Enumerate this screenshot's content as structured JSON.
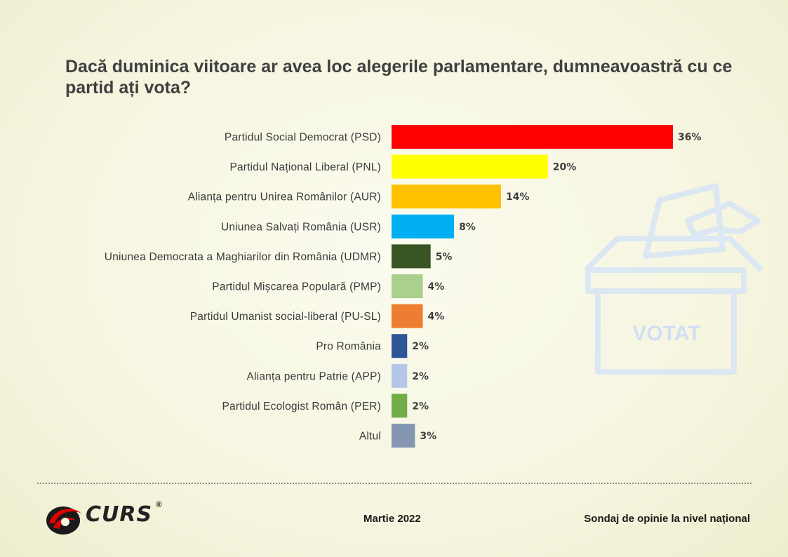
{
  "title": "Dacă duminica viitoare ar avea loc alegerile parlamentare, dumneavoastră cu ce partid ați vota?",
  "chart_data": {
    "type": "bar",
    "orientation": "horizontal",
    "categories": [
      "Partidul Social Democrat (PSD)",
      "Partidul Național Liberal (PNL)",
      "Alianța pentru Unirea Românilor (AUR)",
      "Uniunea Salvați România (USR)",
      "Uniunea Democrata a Maghiarilor din România (UDMR)",
      "Partidul Mișcarea Populară (PMP)",
      "Partidul Umanist social-liberal (PU-SL)",
      "Pro România",
      "Alianța pentru Patrie (APP)",
      "Partidul Ecologist Român (PER)",
      "Altul"
    ],
    "values": [
      36,
      20,
      14,
      8,
      5,
      4,
      4,
      2,
      2,
      2,
      3
    ],
    "value_labels": [
      "36%",
      "20%",
      "14%",
      "8%",
      "5%",
      "4%",
      "4%",
      "2%",
      "2%",
      "2%",
      "3%"
    ],
    "colors": [
      "#ff0000",
      "#ffff00",
      "#ffc000",
      "#00b0f0",
      "#375623",
      "#a9d08e",
      "#ed7d31",
      "#2f5597",
      "#b4c7e7",
      "#70ad47",
      "#8496b0"
    ],
    "xlim": [
      0,
      36
    ],
    "grid": false,
    "legend": "none"
  },
  "decoration": {
    "ballot_text": "VOTAT",
    "ballot_icon": "ballot-box-icon"
  },
  "footer": {
    "brand": "CURS",
    "registered": "®",
    "date": "Martie 2022",
    "source": "Sondaj de opinie la nivel național"
  }
}
